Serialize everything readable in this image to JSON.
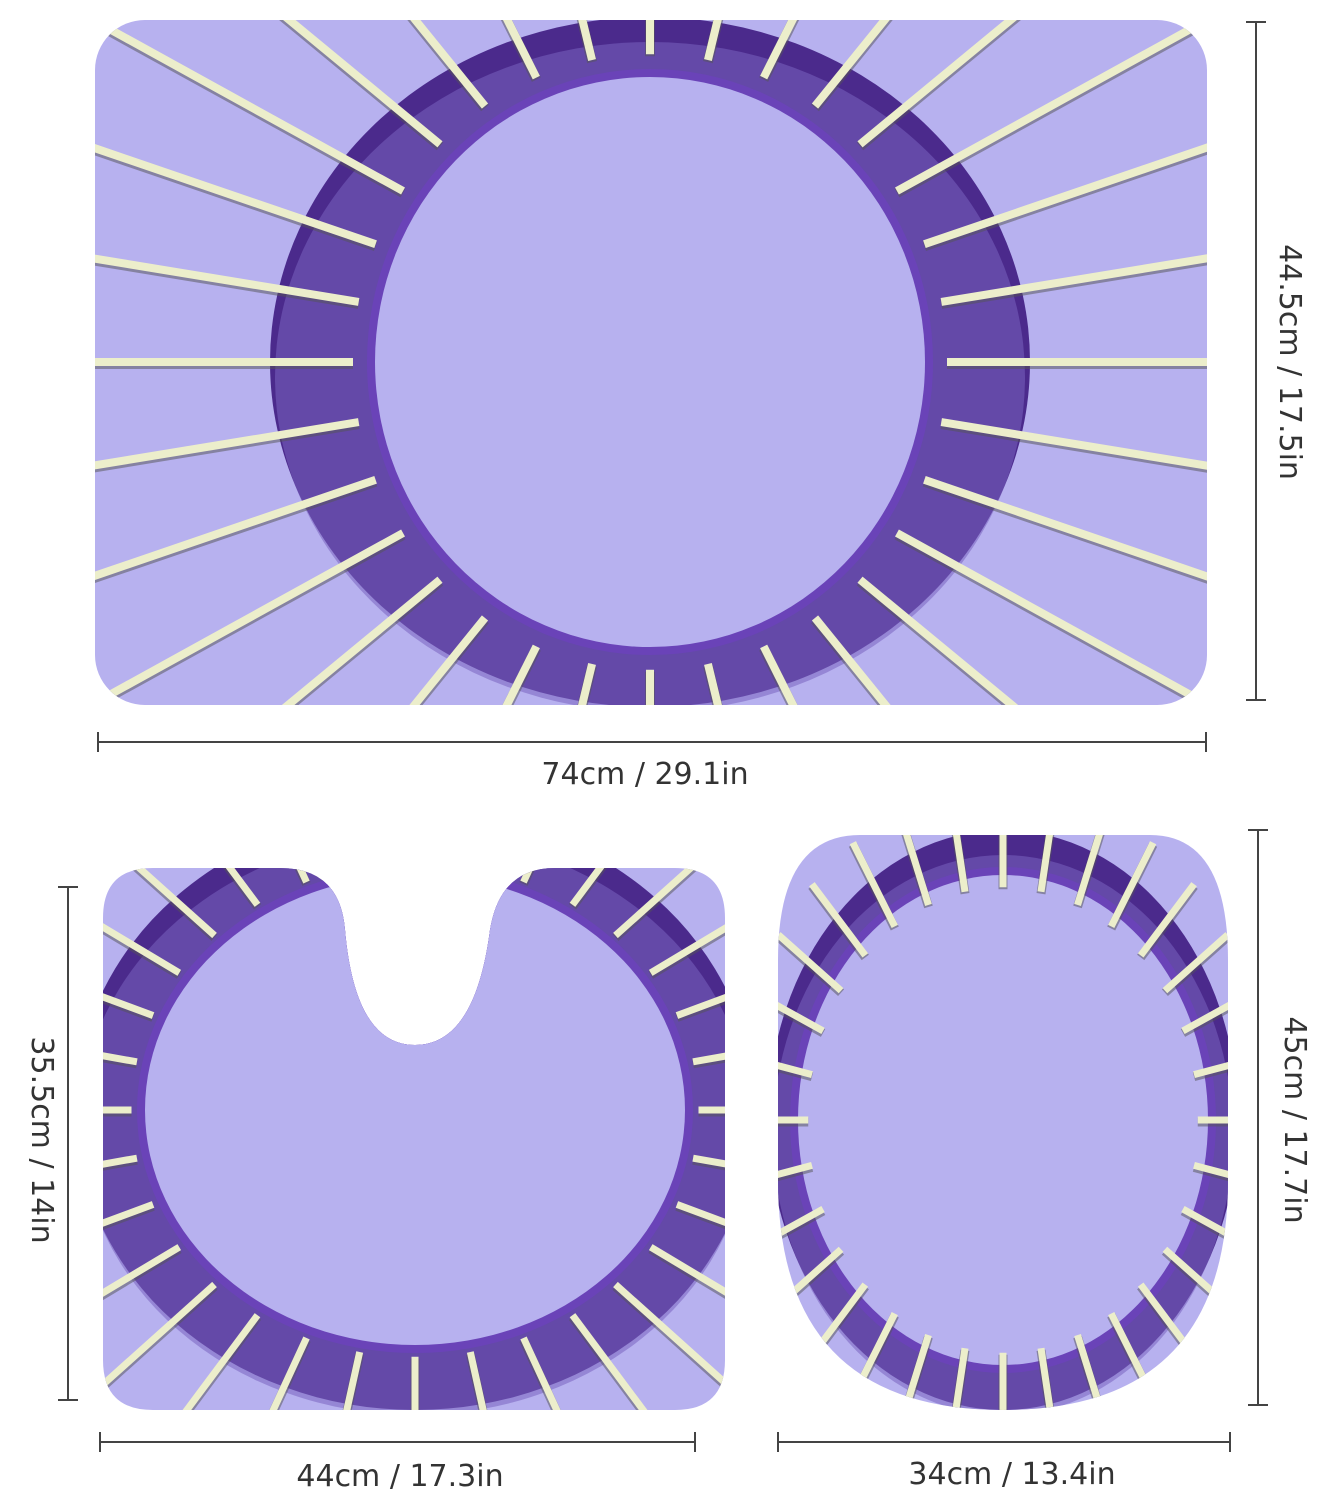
{
  "bath_mat": {
    "width_label": "74cm / 29.1in",
    "height_label": "44.5cm / 17.5in"
  },
  "contour_mat": {
    "width_label": "44cm / 17.3in",
    "height_label": "35.5cm / 14in"
  },
  "lid_cover": {
    "width_label": "34cm / 13.4in",
    "height_label": "45cm / 17.7in"
  }
}
